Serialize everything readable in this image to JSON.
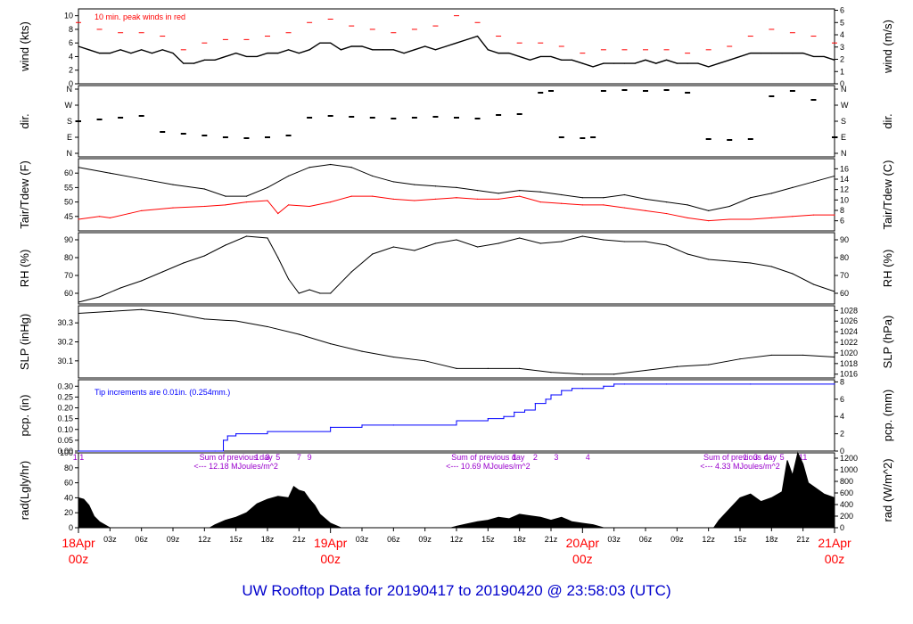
{
  "title": "UW Rooftop Data for 20190417  to  20190420 @ 23:58:03  (UTC)",
  "colors": {
    "frame": "#000000",
    "red": "#ff0000",
    "blue": "#0000ff",
    "purple": "#9900cc",
    "title": "#0000cc"
  },
  "time_axis": {
    "start_hour": 0,
    "end_hour": 72,
    "minor_labels": [
      {
        "hour": 3,
        "label": "03z"
      },
      {
        "hour": 6,
        "label": "06z"
      },
      {
        "hour": 9,
        "label": "09z"
      },
      {
        "hour": 12,
        "label": "12z"
      },
      {
        "hour": 15,
        "label": "15z"
      },
      {
        "hour": 18,
        "label": "18z"
      },
      {
        "hour": 21,
        "label": "21z"
      },
      {
        "hour": 27,
        "label": "03z"
      },
      {
        "hour": 30,
        "label": "06z"
      },
      {
        "hour": 33,
        "label": "09z"
      },
      {
        "hour": 36,
        "label": "12z"
      },
      {
        "hour": 39,
        "label": "15z"
      },
      {
        "hour": 42,
        "label": "18z"
      },
      {
        "hour": 45,
        "label": "21z"
      },
      {
        "hour": 51,
        "label": "03z"
      },
      {
        "hour": 54,
        "label": "06z"
      },
      {
        "hour": 57,
        "label": "09z"
      },
      {
        "hour": 60,
        "label": "12z"
      },
      {
        "hour": 63,
        "label": "15z"
      },
      {
        "hour": 66,
        "label": "18z"
      },
      {
        "hour": 69,
        "label": "21z"
      }
    ],
    "day_labels": [
      {
        "hour": 0,
        "date": "18Apr",
        "time": "00z"
      },
      {
        "hour": 24,
        "date": "19Apr",
        "time": "00z"
      },
      {
        "hour": 48,
        "date": "20Apr",
        "time": "00z"
      },
      {
        "hour": 72,
        "date": "21Apr",
        "time": "00z"
      }
    ]
  },
  "chart_data": [
    {
      "type": "line",
      "id": "wind",
      "ylabel_left": "wind (kts)",
      "ylabel_right": "wind (m/s)",
      "ylim": [
        0,
        11
      ],
      "left_ticks": [
        0,
        2,
        4,
        6,
        8,
        10
      ],
      "right_ticks": [
        0,
        1,
        2,
        3,
        4,
        5,
        6
      ],
      "annotation": "10 min. peak winds in red",
      "series": [
        {
          "name": "wind speed",
          "color": "#000000",
          "x": [
            0,
            1,
            2,
            3,
            4,
            5,
            6,
            7,
            8,
            9,
            10,
            11,
            12,
            13,
            14,
            15,
            16,
            17,
            18,
            19,
            20,
            21,
            22,
            23,
            24,
            25,
            26,
            27,
            28,
            29,
            30,
            31,
            32,
            33,
            34,
            35,
            36,
            37,
            38,
            39,
            40,
            41,
            42,
            43,
            44,
            45,
            46,
            47,
            48,
            49,
            50,
            51,
            52,
            53,
            54,
            55,
            56,
            57,
            58,
            59,
            60,
            61,
            62,
            63,
            64,
            65,
            66,
            67,
            68,
            69,
            70,
            71,
            72
          ],
          "values": [
            5.5,
            5,
            4.5,
            4.5,
            5,
            4.5,
            5,
            4.5,
            5,
            4.5,
            3,
            3,
            3.5,
            3.5,
            4,
            4.5,
            4,
            4,
            4.5,
            4.5,
            5,
            4.5,
            5,
            6,
            6,
            5,
            5.5,
            5.5,
            5,
            5,
            5,
            4.5,
            5,
            5.5,
            5,
            5.5,
            6,
            6.5,
            7,
            5,
            4.5,
            4.5,
            4,
            3.5,
            4,
            4,
            3.5,
            3.5,
            3,
            2.5,
            3,
            3,
            3,
            3,
            3.5,
            3,
            3.5,
            3,
            3,
            3,
            2.5,
            3,
            3.5,
            4,
            4.5,
            4.5,
            4.5,
            4.5,
            4.5,
            4.5,
            4,
            4,
            3.5
          ]
        },
        {
          "name": "10 min. peak winds",
          "color": "#ff0000",
          "x": [
            0,
            2,
            4,
            6,
            8,
            10,
            12,
            14,
            16,
            18,
            20,
            22,
            24,
            26,
            28,
            30,
            32,
            34,
            36,
            38,
            40,
            42,
            44,
            46,
            48,
            50,
            52,
            54,
            56,
            58,
            60,
            62,
            64,
            66,
            68,
            70,
            72
          ],
          "values": [
            9,
            8,
            7.5,
            7.5,
            7,
            5,
            6,
            6.5,
            6.5,
            7,
            7.5,
            9,
            9.5,
            8.5,
            8,
            7.5,
            8,
            8.5,
            10,
            9,
            7,
            6,
            6,
            5.5,
            4.5,
            5,
            5,
            5,
            5,
            4.5,
            5,
            5.5,
            7,
            8,
            7.5,
            7,
            6
          ]
        }
      ]
    },
    {
      "type": "scatter",
      "id": "dir",
      "ylabel_left": "dir.",
      "ylabel_right": "dir.",
      "y_categories": [
        "N",
        "E",
        "S",
        "W",
        "N"
      ],
      "ylim": [
        0,
        360
      ],
      "series": [
        {
          "name": "wind direction (deg)",
          "color": "#000000",
          "x": [
            0,
            2,
            4,
            6,
            8,
            10,
            12,
            14,
            16,
            18,
            20,
            22,
            24,
            26,
            28,
            30,
            32,
            34,
            36,
            38,
            40,
            42,
            44,
            45,
            46,
            48,
            49,
            50,
            52,
            54,
            56,
            58,
            60,
            62,
            64,
            66,
            68,
            70,
            72
          ],
          "values": [
            180,
            190,
            200,
            210,
            120,
            110,
            100,
            90,
            85,
            90,
            100,
            200,
            210,
            205,
            200,
            195,
            200,
            205,
            200,
            195,
            215,
            220,
            340,
            350,
            90,
            85,
            90,
            350,
            355,
            350,
            355,
            340,
            80,
            75,
            80,
            320,
            350,
            300,
            90
          ]
        }
      ]
    },
    {
      "type": "line",
      "id": "temp",
      "ylabel_left": "Tair/Tdew (F)",
      "ylabel_right": "Tair/Tdew (C)",
      "ylim": [
        40,
        65
      ],
      "left_ticks": [
        45,
        50,
        55,
        60
      ],
      "right_ticks": [
        6,
        8,
        10,
        12,
        14,
        16
      ],
      "series": [
        {
          "name": "Tair",
          "color": "#000000",
          "x": [
            0,
            3,
            6,
            9,
            12,
            14,
            16,
            18,
            20,
            22,
            24,
            26,
            28,
            30,
            32,
            34,
            36,
            38,
            40,
            42,
            44,
            46,
            48,
            50,
            52,
            54,
            56,
            58,
            60,
            62,
            64,
            66,
            68,
            70,
            72
          ],
          "values": [
            62,
            60,
            58,
            56,
            54.5,
            52,
            52,
            55,
            59,
            62,
            63,
            62,
            59,
            57,
            56,
            55.5,
            55,
            54,
            53,
            54,
            53.5,
            52.5,
            51.5,
            51.5,
            52.5,
            51,
            50,
            49,
            47,
            48.5,
            51.5,
            53,
            55,
            57,
            59
          ]
        },
        {
          "name": "Tdew",
          "color": "#ff0000",
          "x": [
            0,
            2,
            3,
            6,
            9,
            12,
            14,
            16,
            18,
            19,
            20,
            22,
            24,
            26,
            28,
            30,
            32,
            34,
            36,
            38,
            40,
            42,
            44,
            46,
            48,
            50,
            52,
            54,
            56,
            58,
            60,
            62,
            64,
            66,
            68,
            70,
            72
          ],
          "values": [
            44,
            45,
            44.5,
            47,
            48,
            48.5,
            49,
            50,
            50.5,
            46,
            49,
            48.5,
            50,
            52,
            52,
            51,
            50.5,
            51,
            51.5,
            51,
            51,
            52,
            50,
            49.5,
            49,
            49,
            48,
            47,
            46,
            44.5,
            43.5,
            44,
            44,
            44.5,
            45,
            45.5,
            45.5
          ]
        }
      ]
    },
    {
      "type": "line",
      "id": "rh",
      "ylabel_left": "RH (%)",
      "ylabel_right": "RH (%)",
      "ylim": [
        54,
        94
      ],
      "left_ticks": [
        60,
        70,
        80,
        90
      ],
      "right_ticks": [
        60,
        70,
        80,
        90
      ],
      "series": [
        {
          "name": "RH",
          "color": "#000000",
          "x": [
            0,
            2,
            4,
            6,
            8,
            10,
            12,
            14,
            16,
            18,
            19,
            20,
            21,
            22,
            23,
            24,
            26,
            28,
            30,
            32,
            34,
            36,
            38,
            40,
            42,
            44,
            46,
            48,
            50,
            52,
            54,
            56,
            58,
            60,
            62,
            64,
            66,
            68,
            70,
            72
          ],
          "values": [
            55,
            58,
            63,
            67,
            72,
            77,
            81,
            87,
            92,
            91,
            80,
            68,
            60,
            62,
            60,
            60,
            72,
            82,
            86,
            84,
            88,
            90,
            86,
            88,
            91,
            88,
            89,
            92,
            90,
            89,
            89,
            87,
            82,
            79,
            78,
            77,
            75,
            71,
            65,
            61
          ]
        }
      ]
    },
    {
      "type": "line",
      "id": "slp",
      "ylabel_left": "SLP (inHg)",
      "ylabel_right": "SLP (hPa)",
      "ylim": [
        30.01,
        30.39
      ],
      "left_ticks": [
        30.1,
        30.2,
        30.3
      ],
      "right_ticks": [
        1016,
        1018,
        1020,
        1022,
        1024,
        1026,
        1028
      ],
      "series": [
        {
          "name": "SLP",
          "color": "#000000",
          "x": [
            0,
            3,
            6,
            9,
            12,
            15,
            18,
            21,
            24,
            27,
            30,
            33,
            36,
            39,
            42,
            45,
            48,
            51,
            54,
            57,
            60,
            63,
            66,
            69,
            72
          ],
          "values": [
            30.35,
            30.36,
            30.37,
            30.35,
            30.32,
            30.31,
            30.28,
            30.24,
            30.19,
            30.15,
            30.12,
            30.1,
            30.06,
            30.06,
            30.06,
            30.04,
            30.03,
            30.03,
            30.05,
            30.07,
            30.08,
            30.11,
            30.13,
            30.13,
            30.12
          ]
        }
      ]
    },
    {
      "type": "line",
      "id": "pcp",
      "ylabel_left": "pcp. (in)",
      "ylabel_right": "pcp. (mm)",
      "ylim": [
        0,
        0.33
      ],
      "left_ticks": [
        0,
        0.05,
        0.1,
        0.15,
        0.2,
        0.25,
        0.3
      ],
      "left_tick_labels": [
        "0.00",
        "0.05",
        "0.10",
        "0.15",
        "0.20",
        "0.25",
        "0.30"
      ],
      "right_ticks": [
        0,
        2,
        4,
        6,
        8
      ],
      "annotation": "Tip increments are 0.01in. (0.254mm.)",
      "series": [
        {
          "name": "cumulative precipitation",
          "color": "#0000ff",
          "x": [
            0,
            13,
            13.8,
            14.2,
            15,
            18,
            24,
            27,
            30,
            36,
            39,
            40.5,
            41.5,
            42.5,
            43.5,
            44.5,
            45,
            46,
            47,
            48,
            50,
            51,
            52,
            56,
            64,
            72
          ],
          "values": [
            0,
            0,
            0.05,
            0.07,
            0.08,
            0.09,
            0.11,
            0.12,
            0.12,
            0.14,
            0.15,
            0.16,
            0.18,
            0.19,
            0.22,
            0.24,
            0.26,
            0.28,
            0.29,
            0.29,
            0.3,
            0.31,
            0.31,
            0.31,
            0.31,
            0.31
          ]
        }
      ]
    },
    {
      "type": "area",
      "id": "rad",
      "ylabel_left": "rad(Lgly/hr)",
      "ylabel_right": "rad (W/m^2)",
      "ylim": [
        0,
        100
      ],
      "left_ticks": [
        0,
        20,
        40,
        60,
        80,
        100
      ],
      "right_ticks": [
        0,
        200,
        400,
        600,
        800,
        1000,
        1200
      ],
      "day_summaries": [
        {
          "hour": 15,
          "line1": "Sum of previous day",
          "line2": "<--- 12.18 MJoules/m^2"
        },
        {
          "hour": 39,
          "line1": "Sum of previous day",
          "line2": "<--- 10.69 MJoules/m^2"
        },
        {
          "hour": 63,
          "line1": "Sum of previous day",
          "line2": "<--- 4.33 MJoules/m^2"
        }
      ],
      "hour_marks": [
        {
          "hour": 0,
          "label": "1 1"
        },
        {
          "hour": 17,
          "label": "1"
        },
        {
          "hour": 18,
          "label": "3"
        },
        {
          "hour": 19,
          "label": "5"
        },
        {
          "hour": 21,
          "label": "7"
        },
        {
          "hour": 22,
          "label": "9"
        },
        {
          "hour": 41.5,
          "label": "1"
        },
        {
          "hour": 43.5,
          "label": "2"
        },
        {
          "hour": 45.5,
          "label": "3"
        },
        {
          "hour": 48.5,
          "label": "4"
        },
        {
          "hour": 63.5,
          "label": "1"
        },
        {
          "hour": 64.5,
          "label": "3"
        },
        {
          "hour": 65.5,
          "label": "4"
        },
        {
          "hour": 67,
          "label": "5"
        },
        {
          "hour": 69,
          "label": "11"
        }
      ],
      "series": [
        {
          "name": "solar radiation",
          "color": "#000000",
          "x": [
            0,
            0.5,
            1,
            1.5,
            2,
            2.5,
            3,
            12.5,
            13,
            14,
            15,
            16,
            17,
            18,
            19,
            20,
            20.5,
            21,
            21.5,
            22,
            22.5,
            23,
            24,
            25,
            35.5,
            36,
            37,
            38,
            39,
            40,
            41,
            42,
            43,
            44,
            45,
            46,
            47,
            48,
            49,
            50,
            60.5,
            61,
            62,
            63,
            64,
            65,
            66,
            67,
            67.5,
            68,
            68.5,
            69,
            69.5,
            70,
            71,
            72
          ],
          "values": [
            40,
            38,
            30,
            15,
            8,
            4,
            0,
            0,
            4,
            10,
            14,
            20,
            32,
            38,
            42,
            40,
            55,
            50,
            48,
            38,
            30,
            18,
            6,
            0,
            0,
            2,
            5,
            8,
            10,
            14,
            12,
            18,
            16,
            14,
            10,
            14,
            8,
            6,
            4,
            0,
            0,
            10,
            25,
            40,
            45,
            35,
            40,
            48,
            90,
            70,
            100,
            85,
            60,
            55,
            45,
            40
          ]
        }
      ]
    }
  ]
}
